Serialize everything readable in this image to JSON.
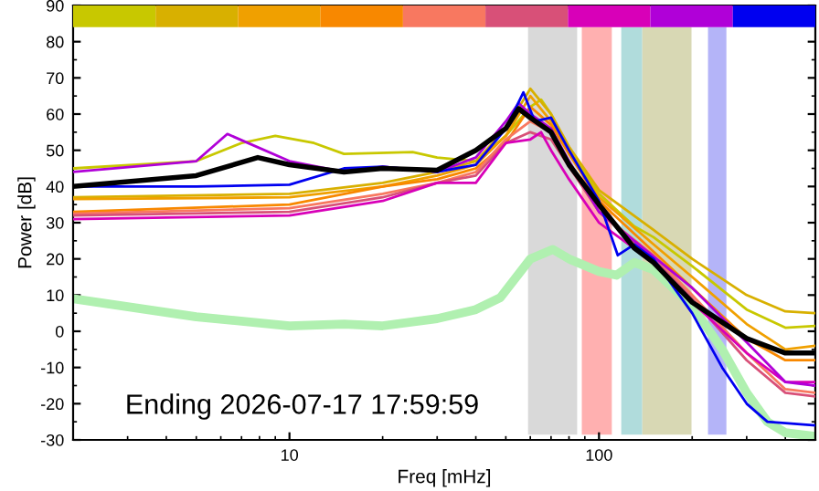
{
  "chart_data": {
    "type": "line",
    "xlabel": "Freq [mHz]",
    "ylabel": "Power [dB]",
    "log": "x",
    "xlim": [
      2,
      500
    ],
    "xticks": [
      10,
      100
    ],
    "ylim": [
      -30,
      90
    ],
    "yticks": [
      -30,
      -20,
      -10,
      0,
      10,
      20,
      30,
      40,
      50,
      60,
      70,
      80,
      90
    ],
    "grid": false,
    "marker": "none",
    "line_style": "solid",
    "annotations": [
      "Ending 2026-07-17 17:59:59"
    ],
    "bands": [
      {
        "axis": "x",
        "from": 59,
        "to": 85,
        "color": "#d9d9d9"
      },
      {
        "axis": "x",
        "from": 88,
        "to": 110,
        "color": "#ffb0b0"
      },
      {
        "axis": "x",
        "from": 118,
        "to": 138,
        "color": "#b0dcdc"
      },
      {
        "axis": "x",
        "from": 138,
        "to": 199,
        "color": "#d8d8b4"
      },
      {
        "axis": "x",
        "from": 225,
        "to": 258,
        "color": "#b4b4f8"
      }
    ],
    "series": [
      {
        "color": "#c8c800",
        "x": [
          2,
          5,
          7,
          9,
          12,
          15,
          25,
          30,
          40,
          50,
          60,
          65,
          70,
          80,
          100,
          130,
          150,
          200,
          300,
          400,
          500
        ],
        "values": [
          45,
          47,
          52,
          54,
          52,
          49,
          49.5,
          48,
          47,
          54,
          62,
          64,
          60,
          50,
          38,
          29,
          26,
          18,
          6,
          1,
          1.5
        ]
      },
      {
        "color": "#d8b000",
        "x": [
          2,
          10,
          20,
          30,
          40,
          50,
          60,
          70,
          80,
          100,
          150,
          200,
          300,
          400,
          500
        ],
        "values": [
          37,
          38,
          41,
          44,
          47,
          56,
          67,
          60,
          51,
          39,
          28,
          20,
          10,
          5.5,
          5
        ]
      },
      {
        "color": "#f0a000",
        "x": [
          2,
          10,
          20,
          30,
          40,
          50,
          60,
          70,
          80,
          100,
          150,
          200,
          300,
          400,
          500
        ],
        "values": [
          36.5,
          37,
          40,
          43,
          46,
          54,
          65,
          58,
          49,
          37,
          24,
          15,
          2,
          -5,
          -4
        ]
      },
      {
        "color": "#f88800",
        "x": [
          2,
          10,
          20,
          30,
          40,
          50,
          60,
          70,
          100,
          150,
          200,
          300,
          400,
          500
        ],
        "values": [
          33,
          35,
          40,
          42,
          45,
          52,
          62,
          57,
          36,
          22,
          12,
          -2,
          -8,
          -8
        ]
      },
      {
        "color": "#f87860",
        "x": [
          2,
          10,
          20,
          30,
          40,
          50,
          60,
          70,
          100,
          150,
          200,
          300,
          400,
          500
        ],
        "values": [
          32.5,
          34,
          38,
          41,
          44,
          53,
          58,
          55,
          33,
          21,
          10,
          -6,
          -16,
          -17
        ]
      },
      {
        "color": "#d85078",
        "x": [
          2,
          10,
          20,
          30,
          40,
          50,
          60,
          70,
          100,
          150,
          200,
          300,
          400,
          500
        ],
        "values": [
          32,
          33,
          37,
          41,
          43,
          52,
          55,
          53,
          33,
          20,
          9,
          -8,
          -17,
          -18
        ]
      },
      {
        "color": "#d800b8",
        "x": [
          2,
          10,
          20,
          30,
          40,
          50,
          60,
          65,
          70,
          80,
          100,
          150,
          200,
          300,
          400,
          500
        ],
        "values": [
          31,
          32,
          36,
          41,
          41,
          52,
          53,
          55,
          50,
          42,
          30,
          19,
          8,
          -6,
          -14,
          -14
        ]
      },
      {
        "color": "#b000d8",
        "x": [
          2,
          5,
          6.3,
          10,
          15,
          20,
          30,
          40,
          50,
          55,
          60,
          70,
          80,
          100,
          130,
          200,
          300,
          400,
          500
        ],
        "values": [
          44,
          47,
          54.5,
          47,
          44,
          45.5,
          44,
          48,
          58,
          63,
          60,
          56,
          47,
          33,
          25,
          12,
          -3,
          -14,
          -15
        ]
      },
      {
        "color": "#0000f0",
        "x": [
          2,
          5,
          10,
          15,
          20,
          30,
          40,
          50,
          57,
          62,
          70,
          80,
          100,
          115,
          130,
          150,
          200,
          250,
          300,
          350,
          500
        ],
        "values": [
          40,
          40,
          40.5,
          45,
          45.5,
          44,
          46,
          56,
          66,
          58,
          59,
          50,
          36,
          21,
          24,
          20,
          5,
          -10,
          -20,
          -25,
          -26
        ]
      },
      {
        "color": "#000000",
        "x": [
          2,
          5,
          7.9,
          10,
          15,
          20,
          30,
          40,
          50,
          55,
          60,
          70,
          80,
          100,
          130,
          150,
          200,
          300,
          400,
          500
        ],
        "values": [
          40,
          43,
          48,
          46,
          44,
          45,
          44.5,
          50,
          56,
          61.5,
          59,
          55,
          46,
          35,
          23,
          19,
          8,
          -2,
          -6,
          -6
        ]
      },
      {
        "color": "#b0f0b0",
        "x": [
          2,
          5,
          10,
          15,
          20,
          30,
          40,
          48,
          60,
          71,
          80,
          100,
          114,
          130,
          150,
          200,
          250,
          300,
          350,
          400,
          500
        ],
        "values": [
          9,
          4,
          1.5,
          2,
          1.5,
          3.5,
          6,
          9.3,
          20,
          22.6,
          20,
          16.5,
          15.5,
          19,
          17,
          7,
          -5,
          -17,
          -25,
          -28,
          -29
        ]
      }
    ]
  }
}
